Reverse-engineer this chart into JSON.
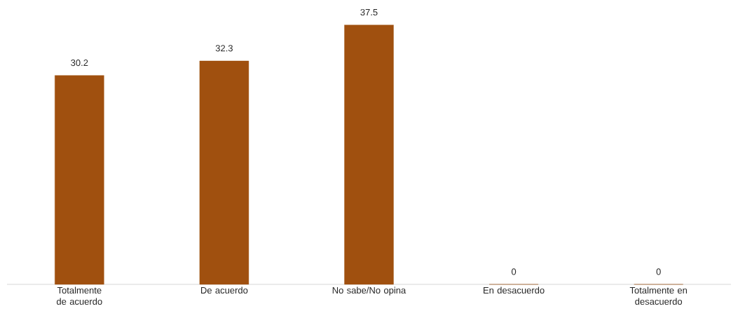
{
  "chart_data": {
    "type": "bar",
    "categories": [
      "Totalmente de acuerdo",
      "De acuerdo",
      "No sabe/No opina",
      "En desacuerdo",
      "Totalmente en desacuerdo"
    ],
    "values": [
      30.2,
      32.3,
      37.5,
      0,
      0
    ],
    "color": "#a0500f",
    "data_labels": true
  }
}
